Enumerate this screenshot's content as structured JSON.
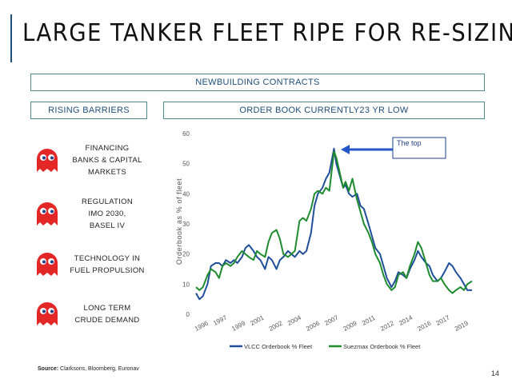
{
  "slide": {
    "title": "LARGE TANKER FLEET RIPE FOR RE-SIZING",
    "header_box": "NEWBUILDING CONTRACTS",
    "left_header": "RISING BARRIERS",
    "right_header": "ORDER BOOK CURRENTLY23 YR LOW",
    "barriers": [
      {
        "lines": [
          "FINANCING",
          "BANKS & CAPITAL",
          "MARKETS"
        ]
      },
      {
        "lines": [
          "REGULATION",
          "IMO 2030,",
          "BASEL IV"
        ]
      },
      {
        "lines": [
          "TECHNOLOGY IN",
          "FUEL PROPULSION"
        ]
      },
      {
        "lines": [
          "LONG TERM",
          "CRUDE DEMAND"
        ]
      }
    ],
    "source_label": "Source:",
    "source_text": "Clarksons, Bloomberg, Euronav",
    "page_number": "14",
    "colors": {
      "accent": "#1f4e79",
      "ghost": "#e32626",
      "box_border": "#4f8a8b"
    },
    "icons": [
      "ghost-icon"
    ]
  },
  "chart_data": {
    "type": "line",
    "ylabel": "Orderbook as % of fleet",
    "ylim": [
      0,
      60
    ],
    "yticks": [
      "0",
      "10",
      "20",
      "30",
      "40",
      "50",
      "60"
    ],
    "xticks": [
      "1996",
      "1997",
      "1999",
      "2001",
      "2002",
      "2004",
      "2006",
      "2007",
      "2009",
      "2011",
      "2012",
      "2014",
      "2016",
      "2017",
      "2019"
    ],
    "xlim": [
      1996,
      2020
    ],
    "annotation": "The top",
    "legend_position": "bottom",
    "series": [
      {
        "name": "VLCC Orderbook % Fleet",
        "color": "#1f4e9a",
        "x": [
          1996.0,
          1996.3,
          1996.6,
          1997.0,
          1997.3,
          1997.7,
          1998.0,
          1998.3,
          1998.6,
          1999.0,
          1999.3,
          1999.6,
          2000.0,
          2000.3,
          2000.6,
          2001.0,
          2001.3,
          2001.6,
          2002.0,
          2002.3,
          2002.6,
          2003.0,
          2003.3,
          2003.6,
          2004.0,
          2004.3,
          2004.6,
          2005.0,
          2005.3,
          2005.6,
          2006.0,
          2006.3,
          2006.6,
          2007.0,
          2007.3,
          2007.6,
          2008.0,
          2008.2,
          2008.5,
          2008.8,
          2009.0,
          2009.3,
          2009.6,
          2010.0,
          2010.3,
          2010.6,
          2011.0,
          2011.3,
          2011.6,
          2012.0,
          2012.3,
          2012.6,
          2013.0,
          2013.3,
          2013.6,
          2014.0,
          2014.3,
          2014.6,
          2015.0,
          2015.3,
          2015.6,
          2016.0,
          2016.3,
          2016.6,
          2017.0,
          2017.3,
          2017.6,
          2018.0,
          2018.3,
          2018.6,
          2019.0,
          2019.3,
          2019.6,
          2020.0
        ],
        "y": [
          7,
          5,
          6,
          10,
          16,
          17,
          17,
          16,
          18,
          17,
          18,
          17,
          19,
          22,
          23,
          21,
          19,
          18,
          15,
          19,
          18,
          15,
          18,
          19,
          21,
          20,
          19,
          21,
          20,
          21,
          27,
          36,
          40,
          42,
          45,
          47,
          55,
          50,
          46,
          42,
          43,
          40,
          39,
          40,
          36,
          35,
          30,
          26,
          22,
          20,
          16,
          12,
          9,
          11,
          14,
          13,
          12,
          15,
          18,
          21,
          19,
          17,
          16,
          13,
          11,
          12,
          14,
          17,
          16,
          14,
          12,
          10,
          8,
          8
        ]
      },
      {
        "name": "Suezmax Orderbook % Fleet",
        "color": "#1e8b2e",
        "x": [
          1996.0,
          1996.3,
          1996.6,
          1997.0,
          1997.3,
          1997.7,
          1998.0,
          1998.3,
          1998.6,
          1999.0,
          1999.3,
          1999.6,
          2000.0,
          2000.3,
          2000.6,
          2001.0,
          2001.3,
          2001.6,
          2002.0,
          2002.3,
          2002.6,
          2003.0,
          2003.3,
          2003.6,
          2004.0,
          2004.3,
          2004.6,
          2005.0,
          2005.3,
          2005.6,
          2006.0,
          2006.3,
          2006.6,
          2007.0,
          2007.3,
          2007.6,
          2008.0,
          2008.2,
          2008.5,
          2008.8,
          2009.0,
          2009.3,
          2009.6,
          2010.0,
          2010.3,
          2010.6,
          2011.0,
          2011.3,
          2011.6,
          2012.0,
          2012.3,
          2012.6,
          2013.0,
          2013.3,
          2013.6,
          2014.0,
          2014.3,
          2014.6,
          2015.0,
          2015.3,
          2015.6,
          2016.0,
          2016.3,
          2016.6,
          2017.0,
          2017.3,
          2017.6,
          2018.0,
          2018.3,
          2018.6,
          2019.0,
          2019.3,
          2019.6,
          2020.0
        ],
        "y": [
          9,
          8,
          9,
          13,
          15,
          14,
          12,
          16,
          17,
          16,
          17,
          19,
          21,
          20,
          19,
          18,
          21,
          20,
          19,
          24,
          27,
          28,
          25,
          20,
          19,
          20,
          21,
          31,
          32,
          31,
          35,
          40,
          41,
          40,
          42,
          41,
          54,
          52,
          47,
          42,
          44,
          41,
          45,
          38,
          34,
          30,
          27,
          24,
          20,
          17,
          13,
          10,
          8,
          9,
          13,
          14,
          12,
          16,
          20,
          24,
          22,
          17,
          13,
          11,
          11,
          12,
          10,
          8,
          7,
          8,
          9,
          8,
          10,
          11
        ]
      }
    ]
  }
}
